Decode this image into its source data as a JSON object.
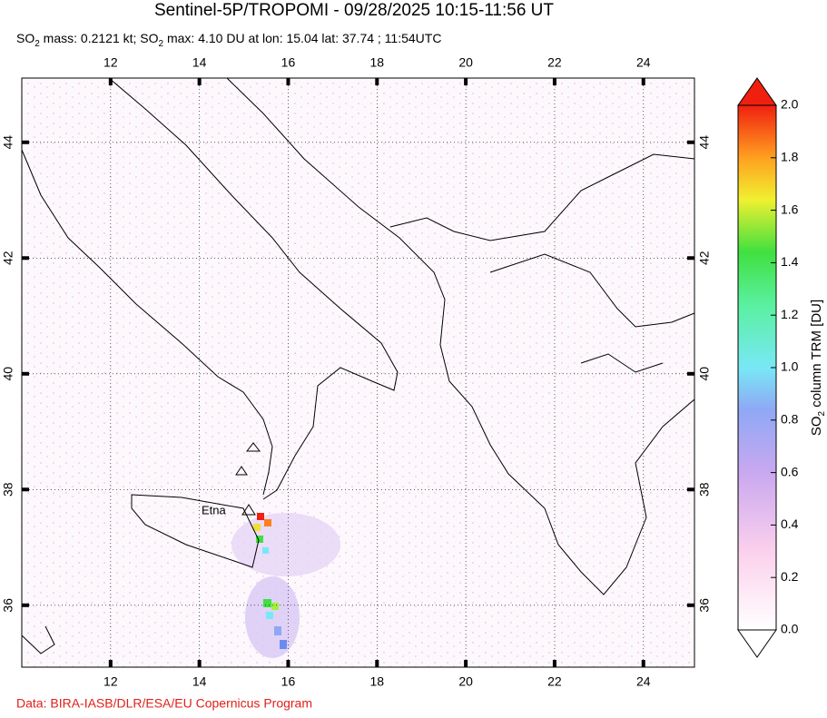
{
  "title": "Sentinel-5P/TROPOMI - 09/28/2025 10:15-11:56 UT",
  "subtitle": [
    {
      "text": "SO"
    },
    {
      "text": "2",
      "sub": true
    },
    {
      "text": " mass: 0.2121 kt; SO"
    },
    {
      "text": "2",
      "sub": true
    },
    {
      "text": " max: 4.10 DU at lon: 15.04 lat: 37.74 ; 11:54UTC"
    }
  ],
  "map": {
    "xlim": [
      10,
      25.15
    ],
    "ylim": [
      34.93,
      45.11
    ],
    "xticks": [
      12,
      14,
      16,
      18,
      20,
      22,
      24
    ],
    "yticks": [
      36,
      38,
      40,
      42,
      44
    ]
  },
  "annotations": [
    {
      "label": "Etna"
    }
  ],
  "colorbar": {
    "lim": [
      0,
      2
    ],
    "ticks": [
      {
        "value": 0,
        "label": "0.0"
      },
      {
        "value": 0.2,
        "label": "0.2"
      },
      {
        "value": 0.4,
        "label": "0.4"
      },
      {
        "value": 0.6,
        "label": "0.6"
      },
      {
        "value": 0.8,
        "label": "0.8"
      },
      {
        "value": 1,
        "label": "1.0"
      },
      {
        "value": 1.2,
        "label": "1.2"
      },
      {
        "value": 1.4,
        "label": "1.4"
      },
      {
        "value": 1.6,
        "label": "1.6"
      },
      {
        "value": 1.8,
        "label": "1.8"
      },
      {
        "value": 2,
        "label": "2.0"
      }
    ],
    "label": [
      {
        "text": "SO"
      },
      {
        "text": "2",
        "sub": true
      },
      {
        "text": " column TRM [DU]"
      }
    ]
  },
  "credit": "Data: BIRA-IASB/DLR/ESA/EU Copernicus Program"
}
